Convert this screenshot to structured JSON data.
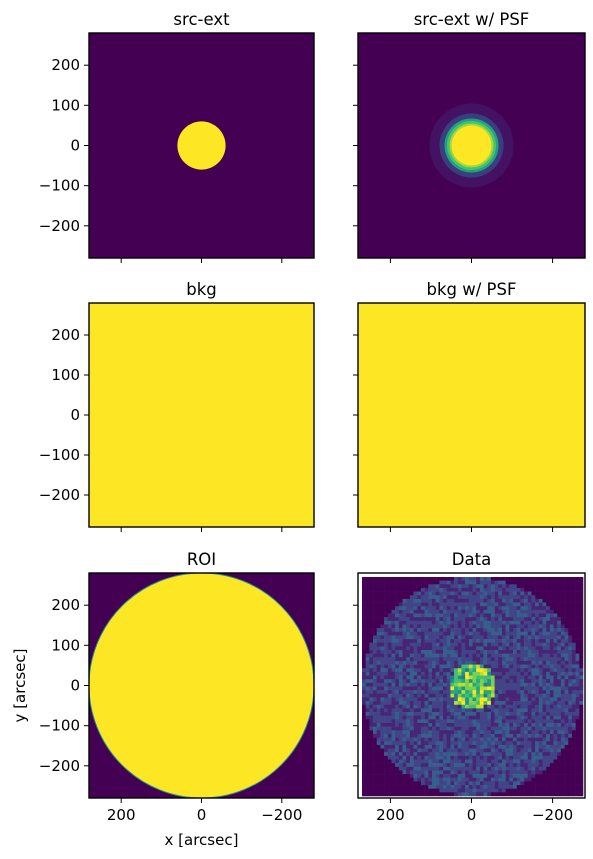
{
  "chart_data": {
    "type": "heatmap",
    "grid": {
      "rows": 3,
      "cols": 2,
      "sharex": true,
      "sharey": true
    },
    "colormap": "viridis",
    "colors": {
      "low": "#440154",
      "high": "#fde725",
      "mid_low": "#3b528b",
      "mid": "#21918c",
      "mid_high": "#5ec962"
    },
    "extent": {
      "x": [
        280,
        -280
      ],
      "y": [
        -280,
        280
      ]
    },
    "xticks": [
      200,
      0,
      -200
    ],
    "yticks": [
      200,
      100,
      0,
      -100,
      -200
    ],
    "xtick_labels": [
      "200",
      "0",
      "−200"
    ],
    "ytick_labels": [
      "200",
      "100",
      "0",
      "−100",
      "−200"
    ],
    "xlabel": "x [arcsec]",
    "ylabel": "y [arcsec]",
    "panels": [
      {
        "id": "src-ext",
        "title": "src-ext",
        "content": "uniform disk",
        "center": [
          0,
          0
        ],
        "radius": 60
      },
      {
        "id": "src-ext-psf",
        "title": "src-ext w/ PSF",
        "content": "psf-smoothed disk",
        "center": [
          0,
          0
        ],
        "radius": 60
      },
      {
        "id": "bkg",
        "title": "bkg",
        "content": "uniform"
      },
      {
        "id": "bkg-psf",
        "title": "bkg w/ PSF",
        "content": "uniform"
      },
      {
        "id": "roi",
        "title": "ROI",
        "content": "uniform disk",
        "center": [
          0,
          0
        ],
        "radius": 280
      },
      {
        "id": "data",
        "title": "Data",
        "content": "binned counts",
        "source_radius": 60,
        "roi_radius": 280
      }
    ]
  }
}
